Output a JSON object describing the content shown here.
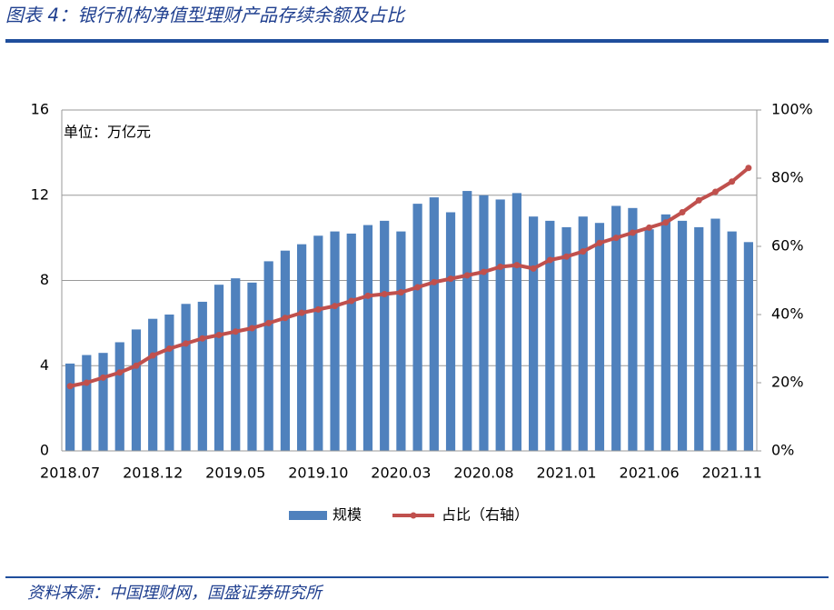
{
  "header": {
    "title": "图表 4：银行机构净值型理财产品存续余额及占比"
  },
  "chart_data": {
    "type": "bar",
    "annotation": "单位：万亿元",
    "categories": [
      "2018.07",
      null,
      null,
      null,
      null,
      "2018.12",
      null,
      null,
      null,
      null,
      "2019.05",
      null,
      null,
      null,
      null,
      "2019.10",
      null,
      null,
      null,
      null,
      "2020.03",
      null,
      null,
      null,
      null,
      "2020.08",
      null,
      null,
      null,
      null,
      "2021.01",
      null,
      null,
      null,
      null,
      "2021.06",
      null,
      null,
      null,
      null,
      "2021.11",
      null
    ],
    "series": [
      {
        "name": "规模",
        "color": "#4f81bd",
        "values": [
          4.1,
          4.5,
          4.6,
          5.1,
          5.7,
          6.2,
          6.4,
          6.9,
          7.0,
          7.8,
          8.1,
          7.9,
          8.9,
          9.4,
          9.7,
          10.1,
          10.3,
          10.2,
          10.6,
          10.8,
          10.3,
          11.6,
          11.9,
          11.2,
          12.2,
          12.0,
          11.8,
          12.1,
          11.0,
          10.8,
          10.5,
          11.0,
          10.7,
          11.5,
          11.4,
          10.4,
          11.1,
          10.8,
          10.5,
          10.9,
          10.3,
          9.8
        ]
      },
      {
        "name": "占比（右轴）",
        "type": "line",
        "axis": "y2",
        "color": "#c0504d",
        "values": [
          19,
          20,
          21.5,
          23,
          25,
          28,
          30,
          31.5,
          33,
          34,
          35,
          36,
          37.5,
          39,
          40.5,
          41.5,
          42.5,
          44,
          45.5,
          46,
          46.5,
          48,
          49.5,
          50.5,
          51.5,
          52.5,
          54,
          54.5,
          53.5,
          56,
          57,
          58.5,
          61,
          62.5,
          64,
          65.5,
          67,
          70,
          73.5,
          76,
          79,
          83
        ]
      }
    ],
    "ylim": [
      0,
      16
    ],
    "yticks": [
      0,
      4,
      8,
      12,
      16
    ],
    "y2lim": [
      0,
      100
    ],
    "y2ticks": [
      {
        "value": 0,
        "label": "0%"
      },
      {
        "value": 20,
        "label": "20%"
      },
      {
        "value": 40,
        "label": "40%"
      },
      {
        "value": 60,
        "label": "60%"
      },
      {
        "value": 80,
        "label": "80%"
      },
      {
        "value": 100,
        "label": "100%"
      }
    ],
    "grid": true,
    "legend": "bottom"
  },
  "footer": {
    "source": "资料来源：中国理财网，国盛证券研究所"
  }
}
